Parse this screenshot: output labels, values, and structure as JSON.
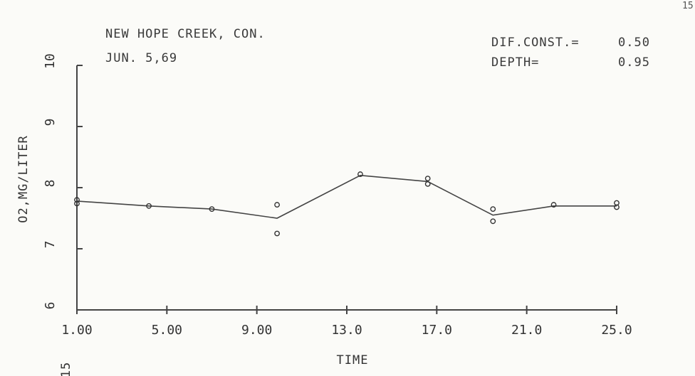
{
  "header": {
    "title_line1": "NEW HOPE CREEK, CON.",
    "title_line2": "JUN. 5,69",
    "param1_label": "DIF.CONST.=",
    "param1_value": "0.50",
    "param2_label": "DEPTH=",
    "param2_value": "0.95"
  },
  "corner_mark": "15",
  "margin_mark": "15",
  "chart_data": {
    "type": "scatter",
    "title": "NEW HOPE CREEK, CON.",
    "subtitle": "JUN. 5,69",
    "xlabel": "TIME",
    "ylabel": "O2,MG/LITER",
    "xlim": [
      1.0,
      25.0
    ],
    "ylim": [
      6,
      10
    ],
    "x_ticks": [
      1.0,
      5.0,
      9.0,
      13.0,
      17.0,
      21.0,
      25.0
    ],
    "x_tick_labels": [
      "1.00",
      "5.00",
      "9.00",
      "13.0",
      "17.0",
      "21.0",
      "25.0"
    ],
    "y_ticks": [
      6,
      7,
      8,
      9,
      10
    ],
    "y_tick_labels": [
      "6",
      "7",
      "8",
      "9",
      "10"
    ],
    "series": [
      {
        "kind": "line",
        "x": [
          1.0,
          4.2,
          7.0,
          9.9,
          13.6,
          16.6,
          19.5,
          22.2,
          25.0
        ],
        "y": [
          7.78,
          7.7,
          7.65,
          7.5,
          8.2,
          8.1,
          7.55,
          7.7,
          7.7
        ]
      },
      {
        "kind": "points",
        "x": [
          1.0,
          1.0,
          4.2,
          7.0,
          9.9,
          9.9,
          13.6,
          16.6,
          16.6,
          19.5,
          19.5,
          22.2,
          25.0,
          25.0
        ],
        "y": [
          7.8,
          7.74,
          7.7,
          7.65,
          7.72,
          7.25,
          8.22,
          8.15,
          8.06,
          7.65,
          7.45,
          7.72,
          7.75,
          7.68
        ]
      }
    ]
  }
}
